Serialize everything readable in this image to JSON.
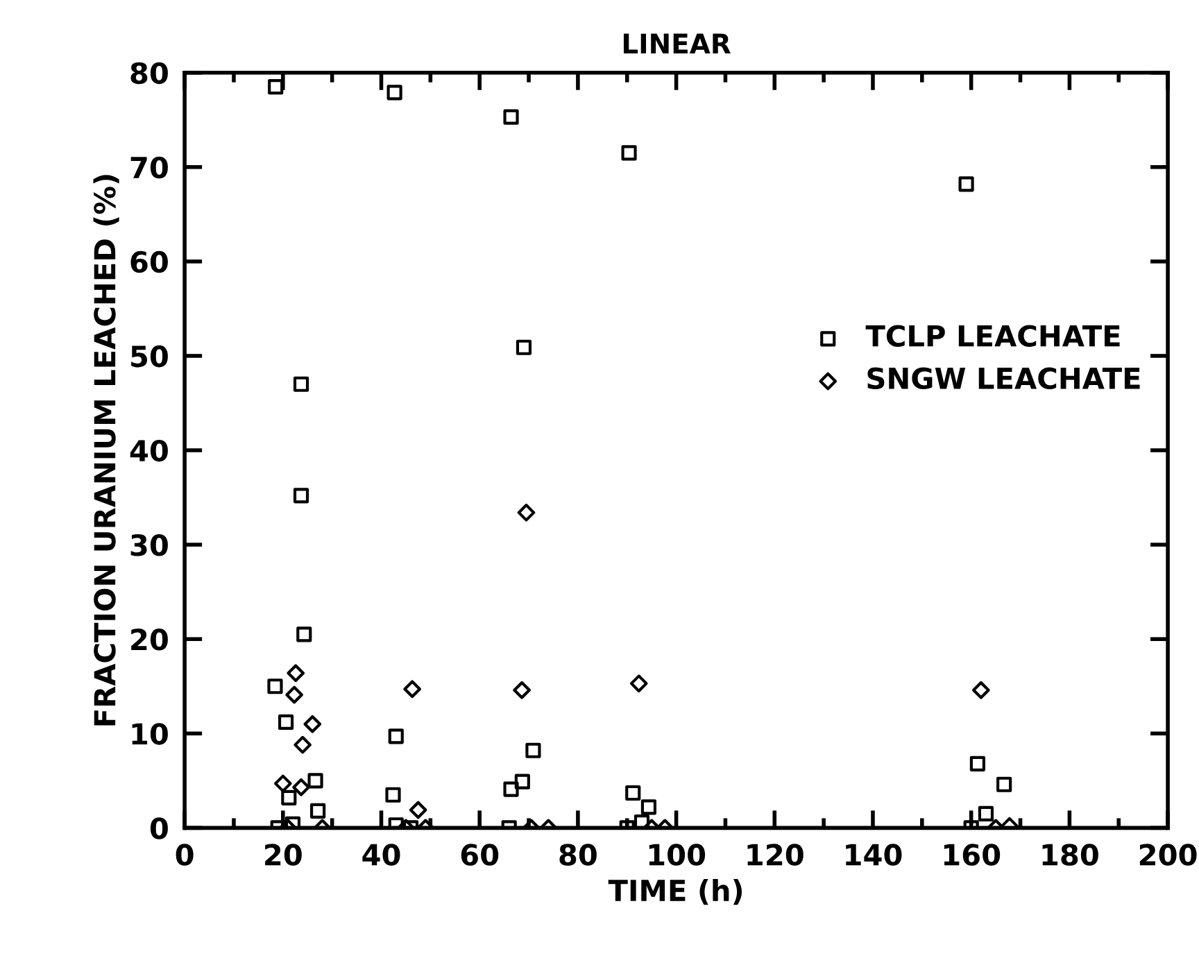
{
  "chart_data": {
    "type": "scatter",
    "title": "LINEAR",
    "xlabel": "TIME (h)",
    "ylabel": "FRACTION URANIUM LEACHED (%)",
    "xlim": [
      0,
      200
    ],
    "ylim": [
      0,
      80
    ],
    "xticks": [
      0,
      {
        "value": 10,
        "label": null
      },
      20,
      {
        "value": 30,
        "label": null
      },
      40,
      {
        "value": 50,
        "label": null
      },
      60,
      {
        "value": 70,
        "label": null
      },
      80,
      {
        "value": 90,
        "label": null
      },
      100,
      {
        "value": 110,
        "label": null
      },
      120,
      {
        "value": 130,
        "label": null
      },
      140,
      {
        "value": 150,
        "label": null
      },
      160,
      {
        "value": 170,
        "label": null
      },
      180,
      {
        "value": 190,
        "label": null
      },
      200
    ],
    "yticks": [
      0,
      10,
      20,
      30,
      40,
      50,
      60,
      70,
      80
    ],
    "grid": false,
    "legend": "right",
    "series": [
      {
        "name": "TCLP LEACHATE",
        "color": "#000000",
        "marker": "square",
        "x": [
          18.5,
          23.7,
          23.7,
          24.3,
          18.4,
          20.6,
          21.2,
          26.6,
          27.1,
          19,
          22,
          43,
          46,
          66,
          42.7,
          43,
          42.4,
          66.4,
          69,
          70.9,
          68.7,
          66.4,
          90.4,
          91.2,
          94.4,
          90,
          93,
          159,
          161.3,
          166.7,
          160,
          163
        ],
        "values": [
          78.5,
          47,
          35.2,
          20.5,
          15.0,
          11.2,
          3.2,
          5.0,
          1.8,
          0,
          0.4,
          0.3,
          0,
          0,
          77.9,
          9.7,
          3.5,
          75.3,
          50.9,
          8.2,
          4.9,
          4.1,
          71.5,
          3.7,
          2.2,
          0,
          0.6,
          68.2,
          6.8,
          4.6,
          0,
          1.5
        ]
      },
      {
        "name": "SNGW LEACHATE",
        "color": "#000000",
        "marker": "diamond",
        "x": [
          22.6,
          22.3,
          26,
          24,
          20,
          23.7,
          46.3,
          47.5,
          21,
          28,
          45,
          49,
          69.5,
          68.6,
          92.4,
          97.7,
          70.5,
          74,
          95,
          162,
          167.8,
          165
        ],
        "values": [
          16.4,
          14.1,
          11.0,
          8.8,
          4.7,
          4.3,
          14.7,
          1.9,
          0,
          0,
          0,
          0,
          33.4,
          14.6,
          15.3,
          0,
          0,
          0,
          0,
          14.6,
          0.2,
          0
        ]
      }
    ]
  }
}
